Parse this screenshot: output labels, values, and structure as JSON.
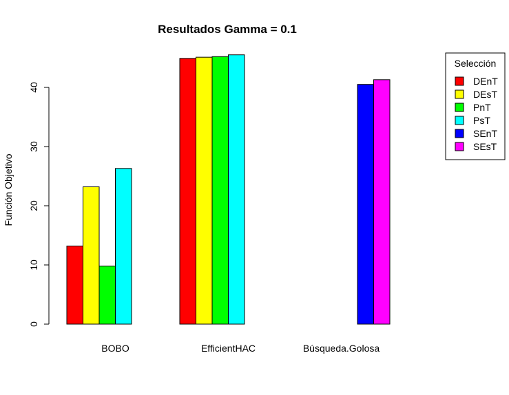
{
  "chart_data": {
    "type": "bar",
    "title": "Resultados Gamma = 0.1",
    "xlabel": "",
    "ylabel": "Función Objetivo",
    "categories": [
      "BOBO",
      "EfficientHAC",
      "Búsqueda.Golosa"
    ],
    "ylim": [
      0,
      47
    ],
    "yticks": [
      0,
      10,
      20,
      30,
      40
    ],
    "legend": {
      "title": "Selección",
      "position": "top-right"
    },
    "series": [
      {
        "name": "DEnT",
        "color": "#FF0000",
        "values": [
          13.2,
          44.9,
          0
        ]
      },
      {
        "name": "DEsT",
        "color": "#FFFF00",
        "values": [
          23.2,
          45.1,
          0
        ]
      },
      {
        "name": "PnT",
        "color": "#00FF00",
        "values": [
          9.8,
          45.2,
          0
        ]
      },
      {
        "name": "PsT",
        "color": "#00FFFF",
        "values": [
          26.3,
          45.5,
          0
        ]
      },
      {
        "name": "SEnT",
        "color": "#0000FF",
        "values": [
          0,
          0,
          40.5
        ]
      },
      {
        "name": "SEsT",
        "color": "#FF00FF",
        "values": [
          0,
          0,
          41.3
        ]
      }
    ]
  }
}
